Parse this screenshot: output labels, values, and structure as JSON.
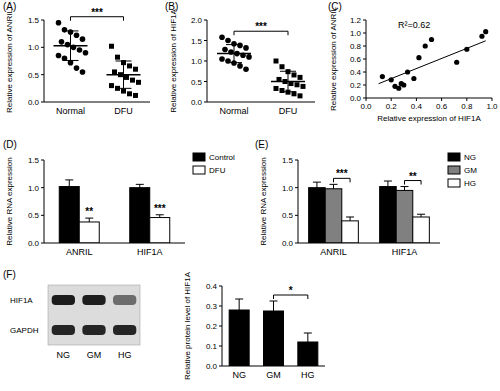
{
  "chart_data": [
    {
      "type": "strip",
      "title": "(A)",
      "y_label": "Relative expression of ANRIL",
      "categories": [
        "Normal",
        "DFU"
      ],
      "values": [
        [
          1.45,
          1.32,
          1.28,
          1.22,
          1.15,
          1.1,
          1.05,
          1.0,
          0.95,
          0.9,
          0.85,
          0.8,
          0.72,
          0.62,
          0.55
        ],
        [
          1.02,
          0.82,
          0.72,
          0.66,
          0.6,
          0.55,
          0.5,
          0.45,
          0.4,
          0.36,
          0.3,
          0.25,
          0.2,
          0.15,
          0.12
        ]
      ],
      "mean": [
        1.03,
        0.5
      ],
      "errors": [
        0.27,
        0.25
      ],
      "ylim": [
        0,
        1.5
      ],
      "yticks": [
        {
          "value": 0,
          "label": "0.0"
        },
        0.5,
        {
          "value": 1,
          "label": "1.0"
        },
        1.5
      ],
      "significance": [
        {
          "text": "***",
          "between": [
            0,
            1
          ]
        }
      ]
    },
    {
      "type": "strip",
      "title": "(B)",
      "y_label": "Relative expression of HIF1A",
      "categories": [
        "Normal",
        "DFU"
      ],
      "values": [
        [
          1.58,
          1.5,
          1.42,
          1.38,
          1.32,
          1.28,
          1.22,
          1.18,
          1.14,
          1.1,
          1.05,
          1.0,
          0.95,
          0.88,
          0.8
        ],
        [
          1.0,
          0.86,
          0.74,
          0.66,
          0.6,
          0.55,
          0.5,
          0.45,
          0.42,
          0.38,
          0.33,
          0.28,
          0.24,
          0.2,
          0.15
        ]
      ],
      "mean": [
        1.18,
        0.5
      ],
      "errors": [
        0.22,
        0.25
      ],
      "ylim": [
        0,
        2
      ],
      "yticks": [
        {
          "value": 0,
          "label": "0.0"
        },
        0.5,
        {
          "value": 1,
          "label": "1.0"
        },
        1.5,
        {
          "value": 2,
          "label": "2.0"
        }
      ],
      "significance": [
        {
          "text": "***",
          "between": [
            0,
            1
          ]
        }
      ]
    },
    {
      "type": "scatter",
      "title": "(C)",
      "x_label": "Relative expression of HIF1A",
      "y_label": "Relative expression of ANRIL",
      "x": [
        0.13,
        0.2,
        0.23,
        0.26,
        0.28,
        0.3,
        0.33,
        0.38,
        0.42,
        0.47,
        0.52,
        0.72,
        0.8,
        0.92,
        0.95
      ],
      "y": [
        0.33,
        0.28,
        0.18,
        0.15,
        0.22,
        0.2,
        0.4,
        0.3,
        0.62,
        0.8,
        0.9,
        0.55,
        0.75,
        0.95,
        1.02
      ],
      "trend_line": {
        "x": [
          0.1,
          0.95
        ],
        "y": [
          0.22,
          0.88
        ]
      },
      "annotations": [
        "R²=0.62"
      ],
      "xlim": [
        0,
        1
      ],
      "xticks": [
        {
          "value": 0,
          "label": "0.0"
        },
        0.2,
        0.4,
        0.6,
        0.8,
        {
          "value": 1,
          "label": "1.0"
        }
      ],
      "ylim": [
        0,
        1.2
      ],
      "yticks": [
        {
          "value": 0,
          "label": "0.0"
        },
        0.2,
        0.4,
        0.6,
        0.8,
        {
          "value": 1,
          "label": "1.0"
        },
        1.2
      ]
    },
    {
      "type": "bar",
      "title": "(D)",
      "y_label": "Relative RNA expression",
      "categories": [
        "ANRIL",
        "HIF1A"
      ],
      "series": [
        {
          "name": "Control",
          "color": "#000000",
          "values": [
            1.02,
            1.0
          ],
          "errors": [
            0.12,
            0.06
          ]
        },
        {
          "name": "DFU",
          "color": "#ffffff",
          "values": [
            0.38,
            0.46
          ],
          "errors": [
            0.07,
            0.05
          ]
        }
      ],
      "legend": "right",
      "ylim": [
        0,
        1.5
      ],
      "yticks": [
        {
          "value": 0,
          "label": "0.0"
        },
        0.5,
        {
          "value": 1,
          "label": "1.0"
        },
        1.5
      ],
      "significance": [
        {
          "text": "**",
          "category": 0,
          "series": 1
        },
        {
          "text": "***",
          "category": 1,
          "series": 1
        }
      ]
    },
    {
      "type": "bar",
      "title": "(E)",
      "y_label": "Relative RNA expression",
      "categories": [
        "ANRIL",
        "HIF1A"
      ],
      "series": [
        {
          "name": "NG",
          "color": "#000000",
          "values": [
            1.0,
            1.02
          ],
          "errors": [
            0.1,
            0.1
          ]
        },
        {
          "name": "GM",
          "color": "#808080",
          "values": [
            0.98,
            0.95
          ],
          "errors": [
            0.08,
            0.07
          ]
        },
        {
          "name": "HG",
          "color": "#ffffff",
          "values": [
            0.4,
            0.47
          ],
          "errors": [
            0.07,
            0.05
          ]
        }
      ],
      "legend": "right",
      "ylim": [
        0,
        1.5
      ],
      "yticks": [
        {
          "value": 0,
          "label": "0.0"
        },
        0.5,
        {
          "value": 1,
          "label": "1.0"
        },
        1.5
      ],
      "significance": [
        {
          "text": "***",
          "category": 0,
          "between": [
            1,
            2
          ]
        },
        {
          "text": "**",
          "category": 1,
          "between": [
            1,
            2
          ]
        }
      ]
    },
    {
      "type": "bar",
      "title": "(F)",
      "y_label": "Relative protein level of HIF1A",
      "categories": [
        "NG",
        "GM",
        "HG"
      ],
      "values": [
        0.28,
        0.275,
        0.12
      ],
      "errors": [
        0.055,
        0.05,
        0.045
      ],
      "color": "#000000",
      "ylim": [
        0,
        0.4
      ],
      "yticks": [
        {
          "value": 0,
          "label": "0.0"
        },
        0.1,
        0.2,
        0.3,
        0.4
      ],
      "significance": [
        {
          "text": "*",
          "between": [
            1,
            2
          ]
        }
      ]
    }
  ],
  "blot": {
    "rows": [
      "HIF1A",
      "GAPDH"
    ],
    "lanes": [
      "NG",
      "GM",
      "HG"
    ]
  }
}
